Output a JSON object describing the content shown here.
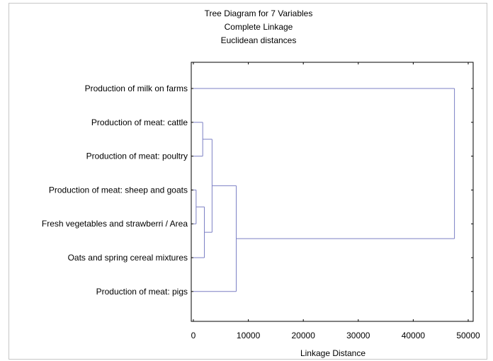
{
  "chart_data": {
    "type": "dendrogram",
    "title": "Tree Diagram for 7 Variables",
    "subtitle_lines": [
      "Complete Linkage",
      "Euclidean distances"
    ],
    "xlabel": "Linkage Distance",
    "xlim": [
      0,
      50000
    ],
    "xticks": [
      "0",
      "10000",
      "20000",
      "30000",
      "40000",
      "50000"
    ],
    "xtick_values": [
      0,
      10000,
      20000,
      30000,
      40000,
      50000
    ],
    "leaves": [
      "Production of milk on farms",
      "Production of meat: cattle",
      "Production of meat: poultry",
      "Production of meat: sheep and goats",
      "Fresh vegetables and strawberri / Area",
      "Oats and spring cereal mixtures",
      "Production of meat: pigs"
    ],
    "merges": [
      {
        "a": {
          "leaf": 3
        },
        "b": {
          "leaf": 4
        },
        "height": 500
      },
      {
        "a": {
          "node": 0
        },
        "b": {
          "leaf": 5
        },
        "height": 2000
      },
      {
        "a": {
          "leaf": 1
        },
        "b": {
          "leaf": 2
        },
        "height": 1700
      },
      {
        "a": {
          "node": 2
        },
        "b": {
          "node": 1
        },
        "height": 3400
      },
      {
        "a": {
          "node": 3
        },
        "b": {
          "leaf": 6
        },
        "height": 7800
      },
      {
        "a": {
          "leaf": 0
        },
        "b": {
          "node": 4
        },
        "height": 47500
      }
    ],
    "link_color": "#7b7fc4"
  }
}
